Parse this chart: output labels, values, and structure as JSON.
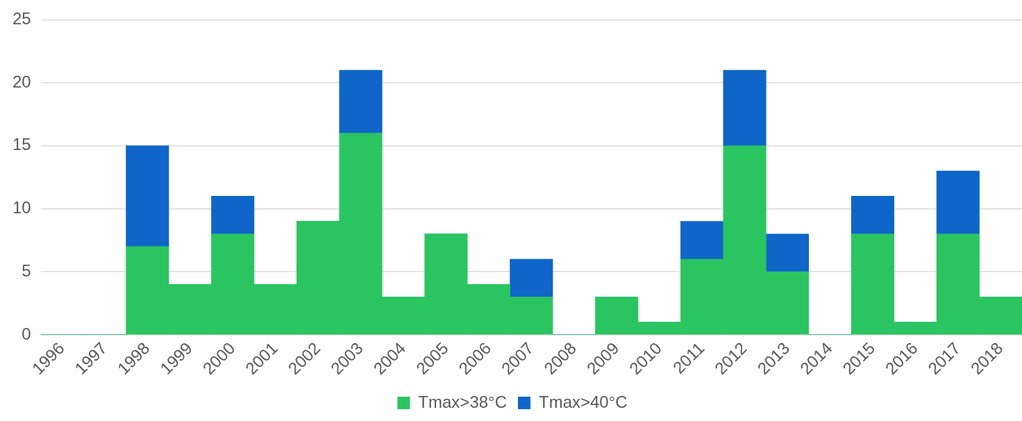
{
  "chart_data": {
    "type": "bar",
    "stacked": true,
    "categories": [
      "1996",
      "1997",
      "1998",
      "1999",
      "2000",
      "2001",
      "2002",
      "2003",
      "2004",
      "2005",
      "2006",
      "2007",
      "2008",
      "2009",
      "2010",
      "2011",
      "2012",
      "2013",
      "2014",
      "2015",
      "2016",
      "2017",
      "2018"
    ],
    "series": [
      {
        "name": "Tmax>38°C",
        "color": "#2ac560",
        "values": [
          0,
          0,
          7,
          4,
          8,
          4,
          9,
          16,
          3,
          8,
          4,
          3,
          0,
          3,
          1,
          6,
          15,
          5,
          0,
          8,
          1,
          8,
          3
        ]
      },
      {
        "name": "Tmax>40°C",
        "color": "#0f66c8",
        "values": [
          0,
          0,
          8,
          0,
          3,
          0,
          0,
          5,
          0,
          0,
          0,
          3,
          0,
          0,
          0,
          3,
          6,
          3,
          0,
          3,
          0,
          5,
          0
        ]
      }
    ],
    "ylim": [
      0,
      25
    ],
    "yticks": [
      0,
      5,
      10,
      15,
      20,
      25
    ],
    "grid": "y",
    "legend": "bottom"
  }
}
